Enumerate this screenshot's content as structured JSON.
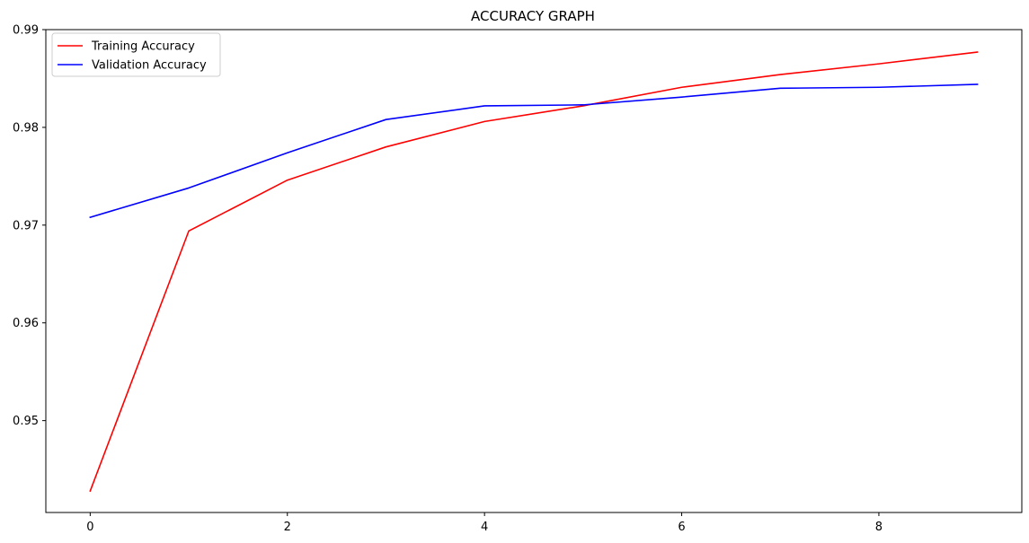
{
  "chart_data": {
    "type": "line",
    "title": "ACCURACY GRAPH",
    "xlabel": "",
    "ylabel": "",
    "x": [
      0,
      1,
      2,
      3,
      4,
      5,
      6,
      7,
      8,
      9
    ],
    "xlim": [
      -0.45,
      9.45
    ],
    "ylim": [
      0.9406,
      0.99
    ],
    "xticks": [
      0,
      2,
      4,
      6,
      8
    ],
    "yticks": [
      0.95,
      0.96,
      0.97,
      0.98,
      0.99
    ],
    "xtick_labels": [
      "0",
      "2",
      "4",
      "6",
      "8"
    ],
    "ytick_labels": [
      "0.95",
      "0.96",
      "0.97",
      "0.98",
      "0.99"
    ],
    "grid": false,
    "legend_position": "top-left",
    "series": [
      {
        "name": "Training Accuracy",
        "color": "#ff0000",
        "values": [
          0.9428,
          0.9694,
          0.9746,
          0.978,
          0.9806,
          0.9822,
          0.9841,
          0.9854,
          0.9865,
          0.9877
        ]
      },
      {
        "name": "Validation Accuracy",
        "color": "#0000ff",
        "values": [
          0.9708,
          0.9738,
          0.9774,
          0.9808,
          0.9822,
          0.9823,
          0.9831,
          0.984,
          0.9841,
          0.9844
        ]
      }
    ]
  }
}
